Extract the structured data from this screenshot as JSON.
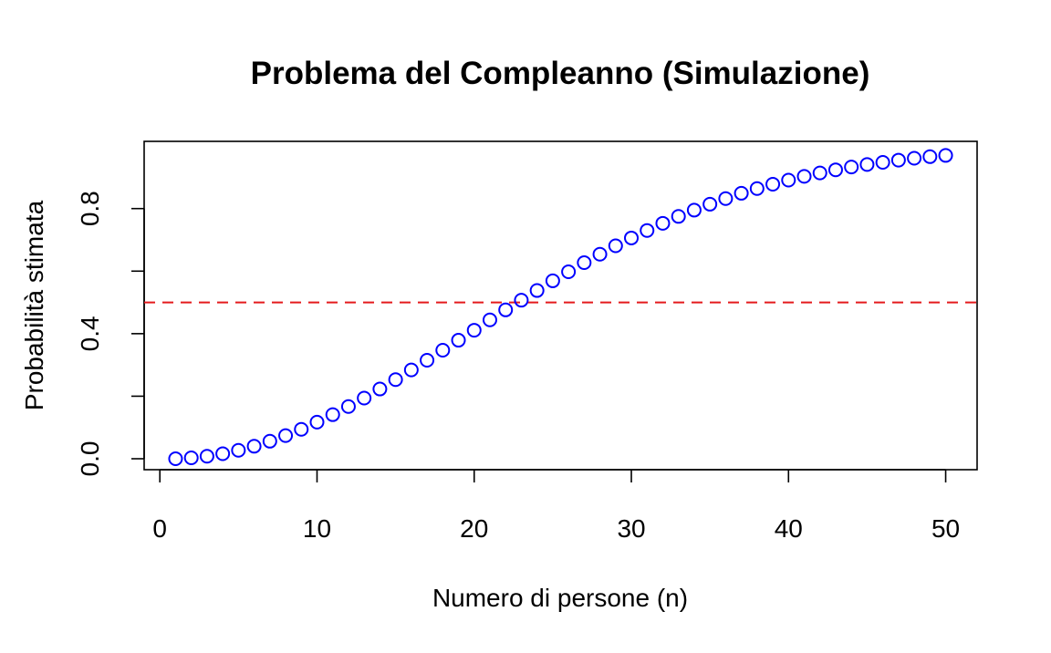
{
  "chart_data": {
    "type": "scatter",
    "title": "Problema del Compleanno (Simulazione)",
    "xlabel": "Numero di persone (n)",
    "ylabel": "Probabilità stimata",
    "xlim": [
      -1,
      52
    ],
    "ylim": [
      -0.035,
      1.015
    ],
    "x_ticks": [
      0,
      10,
      20,
      30,
      40,
      50
    ],
    "x_tick_labels": [
      "0",
      "10",
      "20",
      "30",
      "40",
      "50"
    ],
    "y_ticks": [
      0.0,
      0.2,
      0.4,
      0.6,
      0.8
    ],
    "y_tick_labels": [
      "0.0",
      "",
      "0.4",
      "",
      "0.8"
    ],
    "grid": false,
    "reference_line": {
      "y": 0.5,
      "color": "#e41a1c",
      "style": "dashed"
    },
    "point_color": "#0000ff",
    "point_style": "open-circle",
    "x": [
      1,
      2,
      3,
      4,
      5,
      6,
      7,
      8,
      9,
      10,
      11,
      12,
      13,
      14,
      15,
      16,
      17,
      18,
      19,
      20,
      21,
      22,
      23,
      24,
      25,
      26,
      27,
      28,
      29,
      30,
      31,
      32,
      33,
      34,
      35,
      36,
      37,
      38,
      39,
      40,
      41,
      42,
      43,
      44,
      45,
      46,
      47,
      48,
      49,
      50
    ],
    "y": [
      0.0,
      0.003,
      0.008,
      0.016,
      0.027,
      0.04,
      0.056,
      0.074,
      0.094,
      0.117,
      0.141,
      0.167,
      0.194,
      0.223,
      0.253,
      0.284,
      0.315,
      0.347,
      0.379,
      0.411,
      0.444,
      0.476,
      0.507,
      0.538,
      0.569,
      0.598,
      0.627,
      0.654,
      0.681,
      0.706,
      0.73,
      0.753,
      0.775,
      0.795,
      0.814,
      0.832,
      0.849,
      0.864,
      0.878,
      0.891,
      0.903,
      0.914,
      0.924,
      0.933,
      0.941,
      0.948,
      0.955,
      0.961,
      0.966,
      0.97
    ]
  }
}
